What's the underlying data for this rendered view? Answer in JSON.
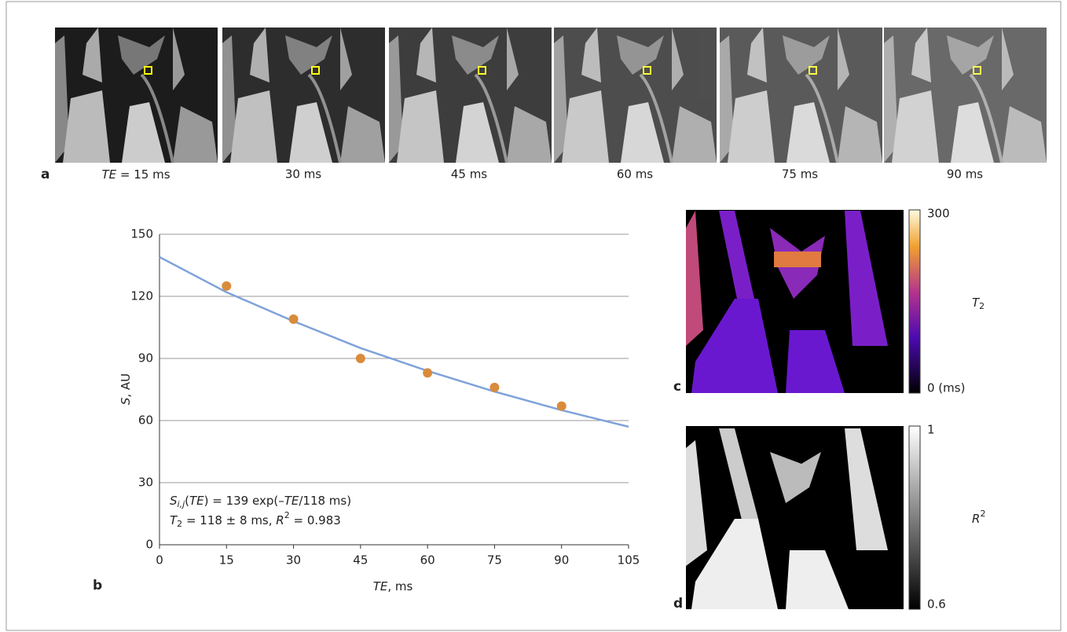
{
  "panel_labels": [
    "a",
    "b",
    "c",
    "d"
  ],
  "panel_a": {
    "labels": [
      [
        "TE",
        " = 15 ms"
      ],
      "30 ms",
      "45 ms",
      "60 ms",
      "75 ms",
      "90 ms"
    ]
  },
  "chart_data": {
    "type": "scatter",
    "x": [
      15,
      30,
      45,
      60,
      75,
      90
    ],
    "values": [
      125,
      109,
      90,
      83,
      76,
      67
    ],
    "color": "#d98b3c",
    "fit": {
      "type": "line",
      "x": [
        0,
        15,
        30,
        45,
        60,
        75,
        90,
        105
      ],
      "values": [
        139,
        122,
        108,
        95,
        84,
        74,
        65,
        57
      ],
      "color": "#7fa2da"
    },
    "xlim": [
      0,
      105
    ],
    "xticks": [
      0,
      15,
      30,
      45,
      60,
      75,
      90,
      105
    ],
    "ylim": [
      0,
      150
    ],
    "yticks": [
      0,
      30,
      60,
      90,
      120,
      150
    ],
    "grid": true,
    "xlabel": [
      "TE",
      ", ms"
    ],
    "ylabel": [
      "S",
      ", AU"
    ],
    "annotations": [
      [
        "S",
        "i,j",
        "(",
        "TE",
        ") = 139 exp(–",
        "TE",
        "/118 ms)"
      ],
      [
        "T",
        "2",
        " = 118 ± 8 ms, ",
        "R",
        "2",
        " = 0.983"
      ]
    ]
  },
  "panel_c": {
    "colorbar": [
      "300",
      "0 (ms)"
    ],
    "label": [
      "T",
      "2"
    ]
  },
  "panel_d": {
    "colorbar": [
      "1",
      "0.6"
    ],
    "label": [
      "R",
      "2"
    ]
  }
}
